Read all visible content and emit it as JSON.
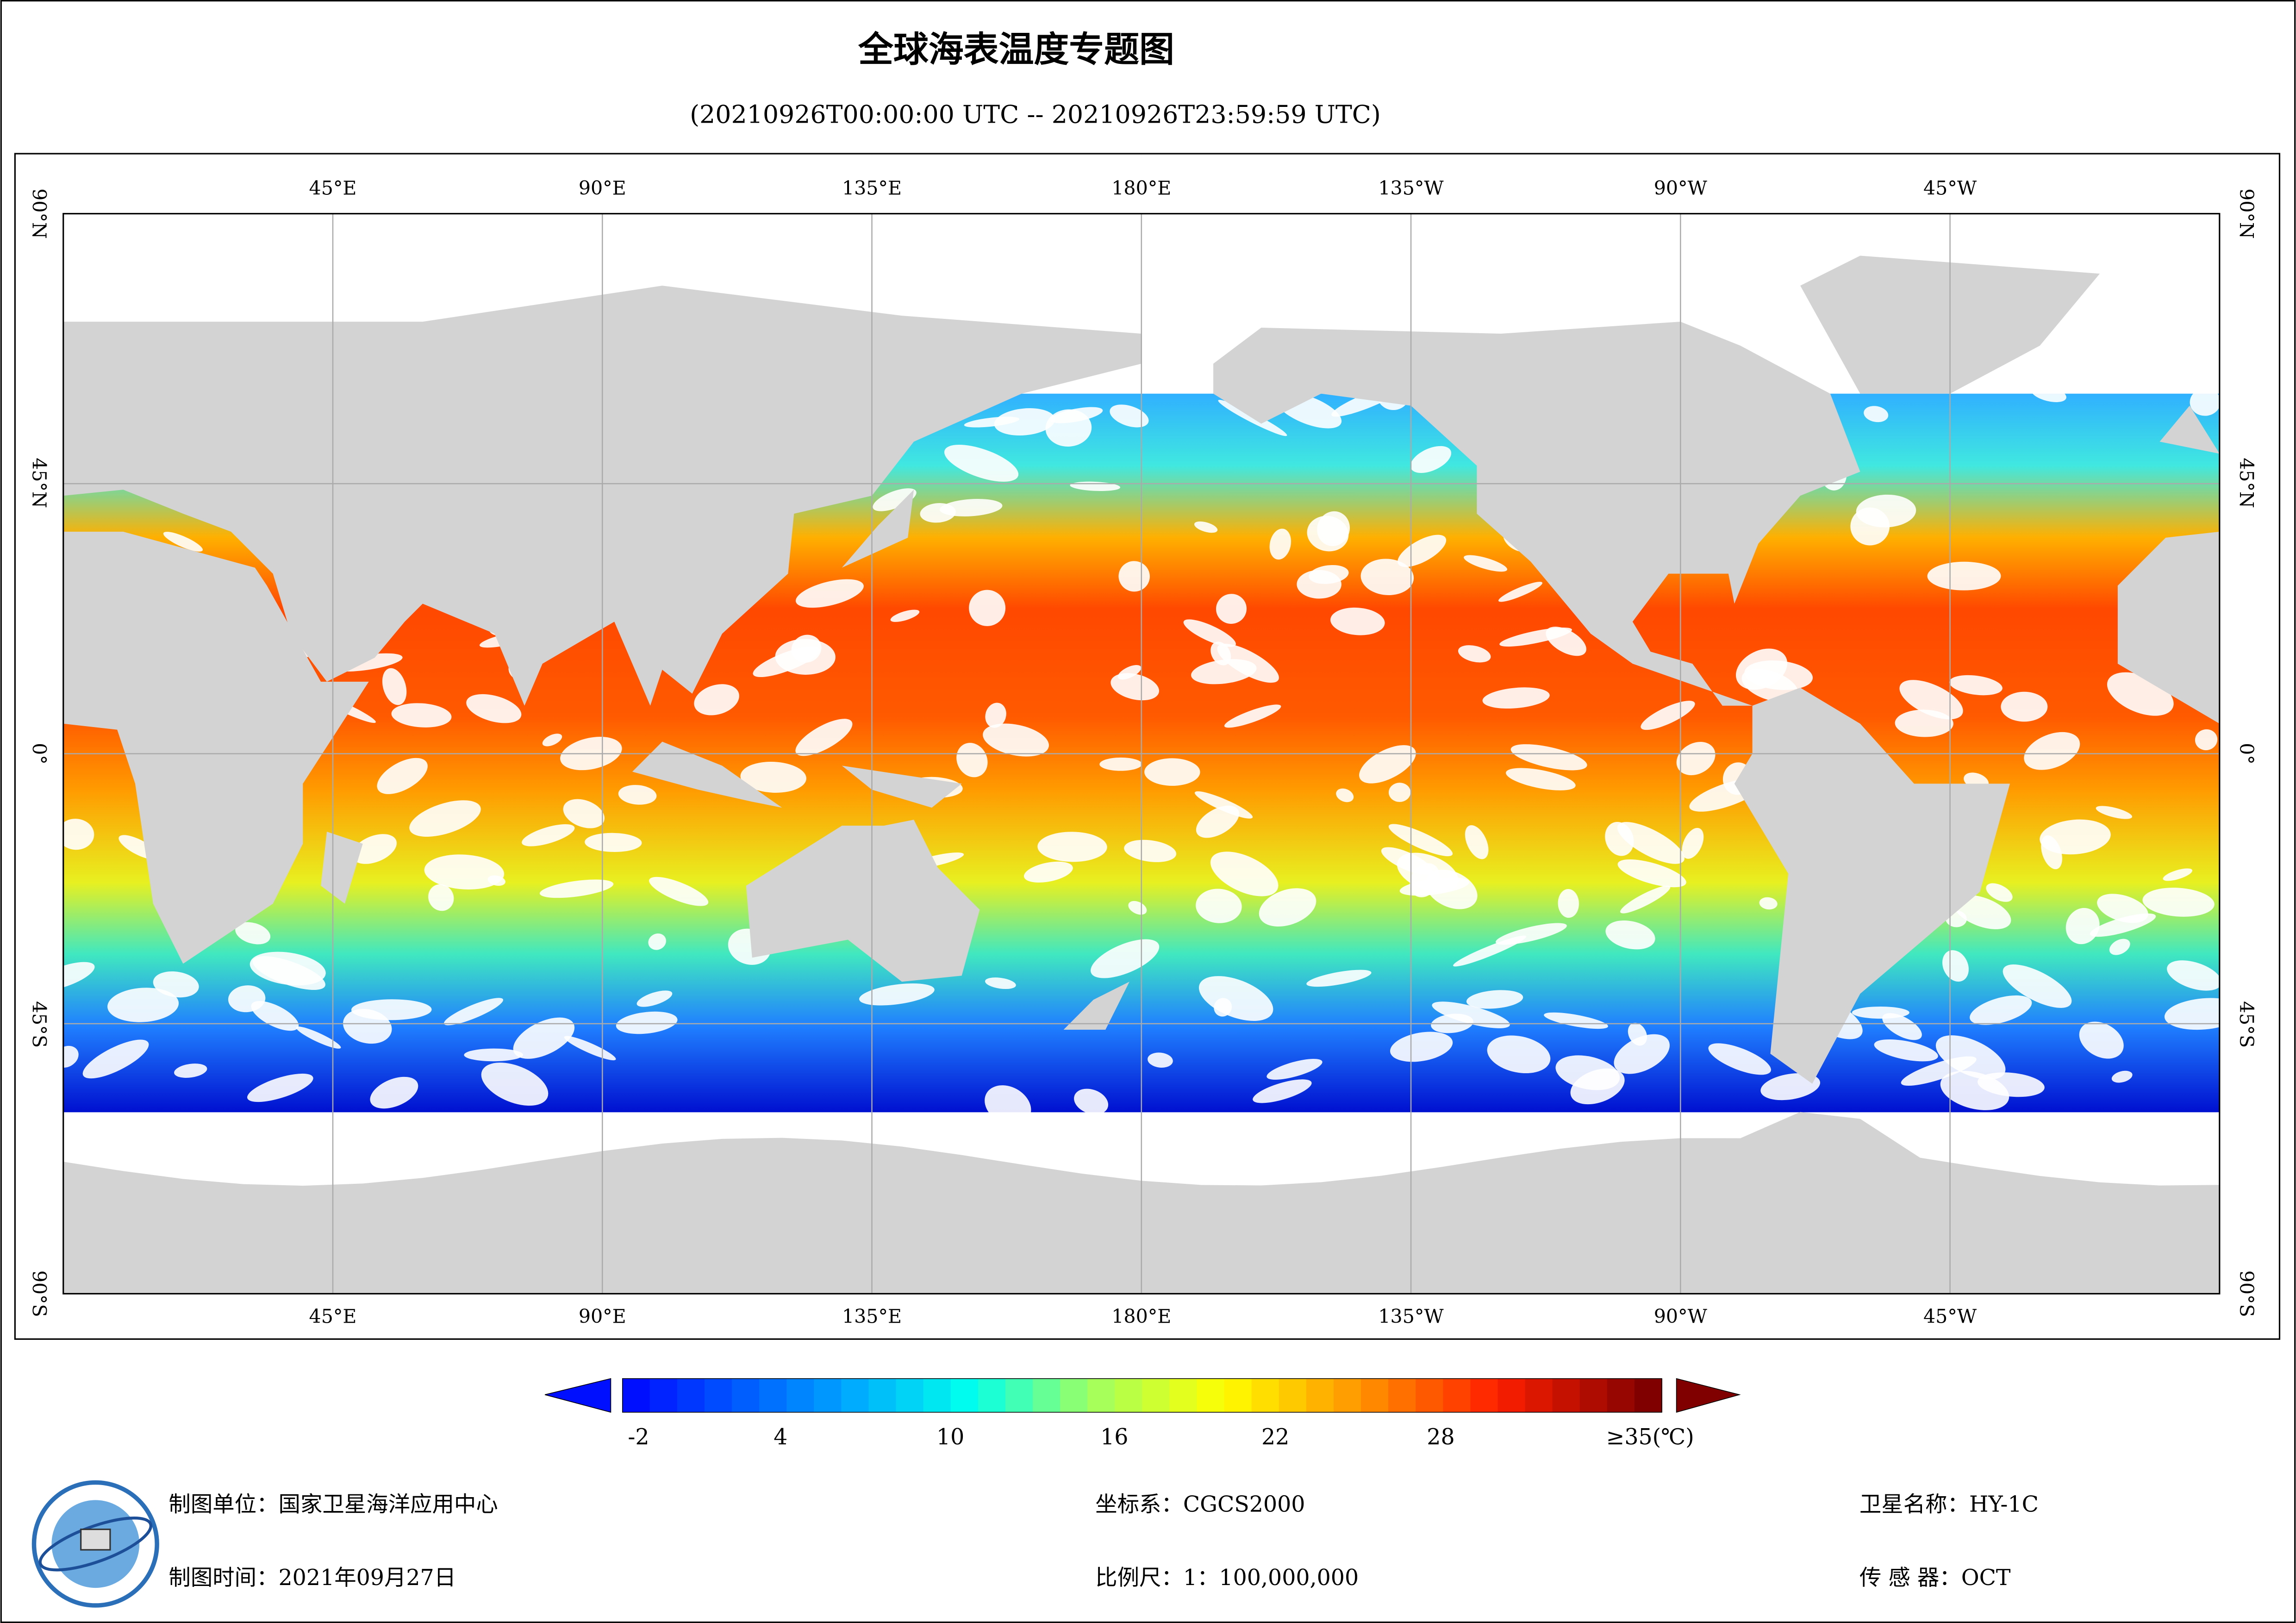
{
  "title": "全球海表温度专题图",
  "subtitle": "(20210926T00:00:00 UTC -- 20210926T23:59:59 UTC)",
  "map": {
    "lon_labels": [
      "45°E",
      "90°E",
      "135°E",
      "180°E",
      "135°W",
      "90°W",
      "45°W"
    ],
    "lat_labels": [
      "90°N",
      "45°N",
      "0°",
      "45°S",
      "90°S"
    ]
  },
  "colorbar": {
    "ticks": [
      "-2",
      "4",
      "10",
      "16",
      "22",
      "28",
      "≥35(℃)"
    ]
  },
  "footer": {
    "unit": "制图单位：国家卫星海洋应用中心",
    "date": "制图时间：2021年09月27日",
    "crs": "坐标系：CGCS2000",
    "scale": "比例尺：1：100,000,000",
    "satellite": "卫星名称：HY-1C",
    "sensor": "传 感 器：OCT"
  }
}
